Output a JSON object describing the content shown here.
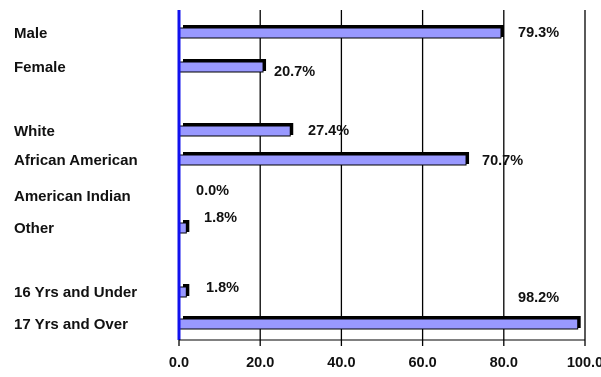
{
  "chart_data": {
    "type": "bar",
    "orientation": "horizontal",
    "categories": [
      "Male",
      "Female",
      "",
      "White",
      "African American",
      "American Indian",
      "Other",
      "",
      "16 Yrs and Under",
      "17  Yrs and Over"
    ],
    "values": [
      79.3,
      20.7,
      null,
      27.4,
      70.7,
      0.0,
      1.8,
      null,
      1.8,
      98.2
    ],
    "data_labels": [
      "79.3%",
      "20.7%",
      "",
      "27.4%",
      "70.7%",
      "0.0%",
      "1.8%",
      "",
      "1.8%",
      "98.2%"
    ],
    "xlim": [
      0,
      100
    ],
    "x_ticks": [
      "0.0",
      "20.0",
      "40.0",
      "60.0",
      "80.0",
      "100.0"
    ],
    "grid": "vertical",
    "legend": "none",
    "colors": {
      "bar_fill": "#9999ff",
      "bar_shadow": "#000000",
      "axis": "#1111ee",
      "grid": "#000000"
    }
  }
}
